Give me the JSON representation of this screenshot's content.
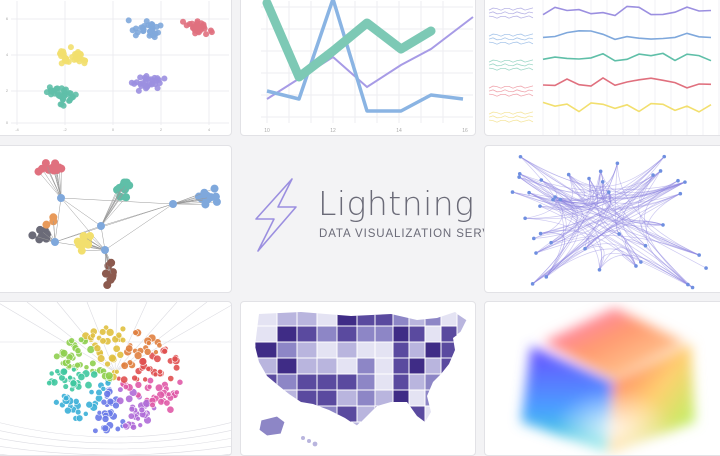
{
  "brand": {
    "name": "Lightning",
    "tagline": "DATA VISUALIZATION SERVER",
    "accent": "#9b8fe0",
    "text_color": "#6b6b78"
  },
  "scatter_tile": {
    "x_ticks": [
      "-4",
      "-2",
      "0",
      "2",
      "4"
    ],
    "y_ticks": [
      "6",
      "4",
      "2",
      "0"
    ],
    "cluster_colors": [
      "#e0707e",
      "#7fa8dc",
      "#f2df6e",
      "#5fbfa8",
      "#9b8fe0"
    ]
  },
  "line_tile": {
    "x_ticks": [
      "10",
      "12",
      "14",
      "16"
    ],
    "series_colors": [
      "#7dc9b5",
      "#8ab4e3",
      "#a79be6"
    ]
  },
  "multi_line_tile": {
    "series_colors": [
      "#9b8fe0",
      "#7fa8dc",
      "#5fbfa8",
      "#e0707e",
      "#f2df6e"
    ]
  },
  "force_tile": {
    "node_colors": [
      "#e0707e",
      "#7fa8dc",
      "#5fbfa8",
      "#f2df6e",
      "#6b6b78",
      "#e89a5a",
      "#8c5a4e"
    ]
  },
  "graph_bundle_tile": {
    "color": "#8f86e0"
  },
  "map_tile": {
    "palette": [
      "#e4e3f3",
      "#b9b5de",
      "#8d86c6",
      "#5a4a9f",
      "#3f2c86"
    ]
  },
  "volume_tile": {
    "colors": [
      "#ff70d0",
      "#ff8a50",
      "#5a5aff",
      "#40e0d0",
      "#a0ff60"
    ]
  }
}
